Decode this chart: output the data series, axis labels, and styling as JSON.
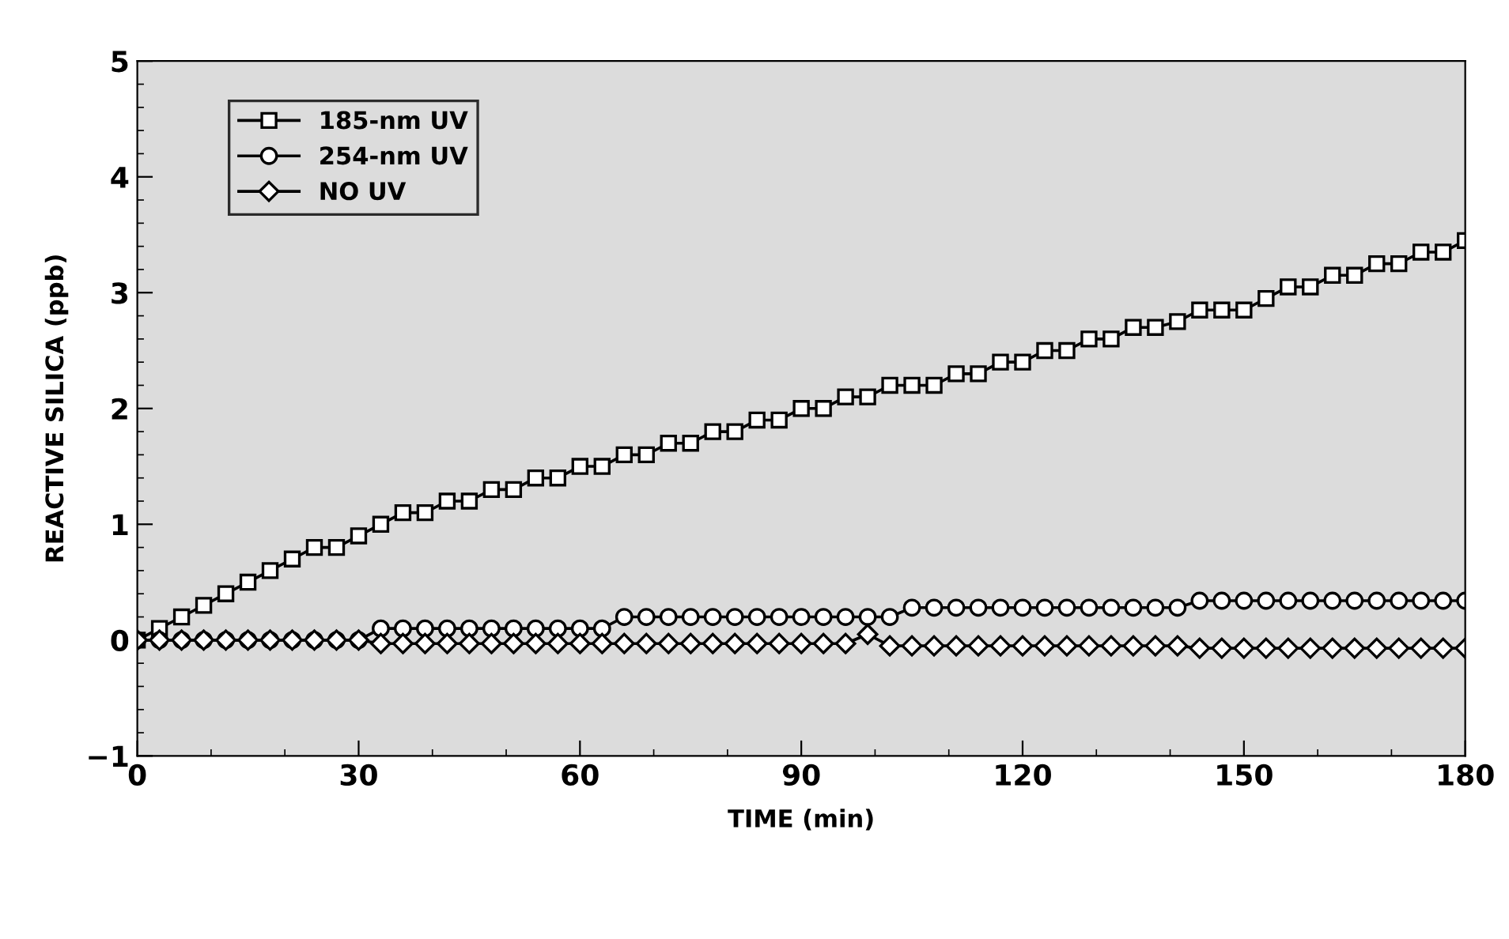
{
  "chart_data": {
    "type": "line",
    "xlabel": "TIME (min)",
    "ylabel": "REACTIVE SILICA (ppb)",
    "x": [
      0,
      3,
      6,
      9,
      12,
      15,
      18,
      21,
      24,
      27,
      30,
      33,
      36,
      39,
      42,
      45,
      48,
      51,
      54,
      57,
      60,
      63,
      66,
      69,
      72,
      75,
      78,
      81,
      84,
      87,
      90,
      93,
      96,
      99,
      102,
      105,
      108,
      111,
      114,
      117,
      120,
      123,
      126,
      129,
      132,
      135,
      138,
      141,
      144,
      147,
      150,
      153,
      156,
      159,
      162,
      165,
      168,
      171,
      174,
      177,
      180
    ],
    "series": [
      {
        "name": "185-nm UV",
        "color": "#000000",
        "marker": "square",
        "values": [
          0,
          0.1,
          0.2,
          0.3,
          0.4,
          0.5,
          0.6,
          0.7,
          0.8,
          0.8,
          0.9,
          1.0,
          1.1,
          1.1,
          1.2,
          1.2,
          1.3,
          1.3,
          1.4,
          1.4,
          1.5,
          1.5,
          1.6,
          1.6,
          1.7,
          1.7,
          1.8,
          1.8,
          1.9,
          1.9,
          2.0,
          2.0,
          2.1,
          2.1,
          2.2,
          2.2,
          2.2,
          2.3,
          2.3,
          2.4,
          2.4,
          2.5,
          2.5,
          2.6,
          2.6,
          2.7,
          2.7,
          2.75,
          2.85,
          2.85,
          2.85,
          2.95,
          3.05,
          3.05,
          3.15,
          3.15,
          3.25,
          3.25,
          3.35,
          3.35,
          3.45
        ]
      },
      {
        "name": "254-nm UV",
        "color": "#000000",
        "marker": "circle",
        "values": [
          0,
          0,
          0,
          0,
          0,
          0,
          0,
          0,
          0,
          0,
          0,
          0.1,
          0.1,
          0.1,
          0.1,
          0.1,
          0.1,
          0.1,
          0.1,
          0.1,
          0.1,
          0.1,
          0.2,
          0.2,
          0.2,
          0.2,
          0.2,
          0.2,
          0.2,
          0.2,
          0.2,
          0.2,
          0.2,
          0.2,
          0.2,
          0.28,
          0.28,
          0.28,
          0.28,
          0.28,
          0.28,
          0.28,
          0.28,
          0.28,
          0.28,
          0.28,
          0.28,
          0.28,
          0.34,
          0.34,
          0.34,
          0.34,
          0.34,
          0.34,
          0.34,
          0.34,
          0.34,
          0.34,
          0.34,
          0.34,
          0.34
        ]
      },
      {
        "name": "NO UV",
        "color": "#000000",
        "marker": "diamond",
        "values": [
          0,
          0,
          0,
          0,
          0,
          0,
          0,
          0,
          0,
          0,
          0,
          -0.03,
          -0.03,
          -0.03,
          -0.03,
          -0.03,
          -0.03,
          -0.03,
          -0.03,
          -0.03,
          -0.03,
          -0.03,
          -0.03,
          -0.03,
          -0.03,
          -0.03,
          -0.03,
          -0.03,
          -0.03,
          -0.03,
          -0.03,
          -0.03,
          -0.03,
          0.05,
          -0.05,
          -0.05,
          -0.05,
          -0.05,
          -0.05,
          -0.05,
          -0.05,
          -0.05,
          -0.05,
          -0.05,
          -0.05,
          -0.05,
          -0.05,
          -0.05,
          -0.07,
          -0.07,
          -0.07,
          -0.07,
          -0.07,
          -0.07,
          -0.07,
          -0.07,
          -0.07,
          -0.07,
          -0.07,
          -0.07,
          -0.07
        ]
      }
    ],
    "xlim": [
      0,
      180
    ],
    "xticks": [
      0,
      30,
      60,
      90,
      120,
      150,
      180
    ],
    "ylim": [
      -1,
      5
    ],
    "yticks": [
      -1,
      0,
      1,
      2,
      3,
      4,
      5
    ],
    "grid": false,
    "legend": "top left",
    "line_style": "solid"
  }
}
